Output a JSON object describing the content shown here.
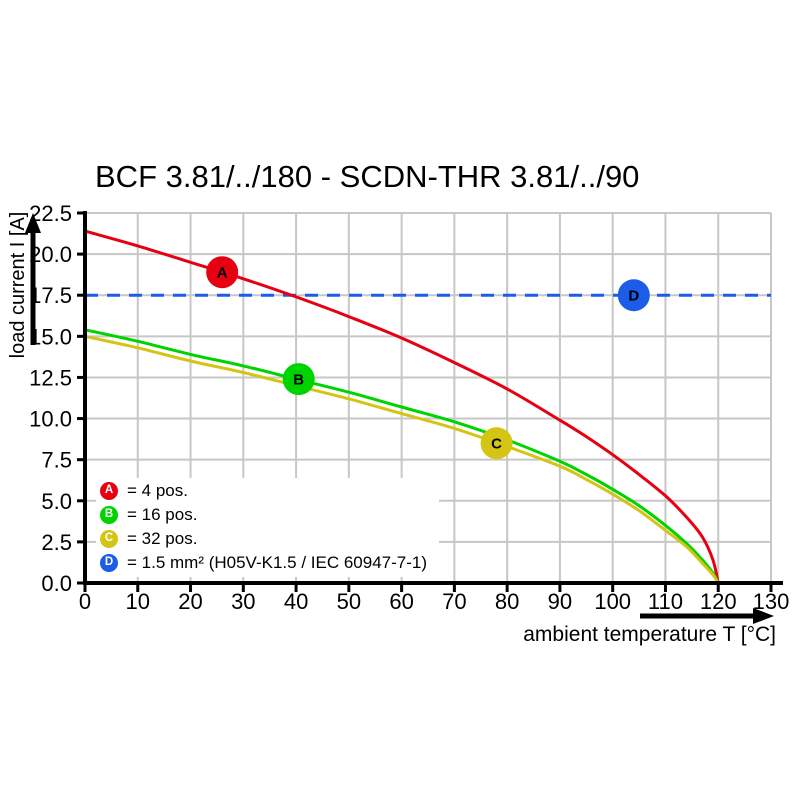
{
  "chart_data": {
    "type": "line",
    "title": "BCF 3.81/../180 - SCDN-THR 3.81/../90",
    "xlabel": "ambient temperature T [°C]",
    "ylabel": "load current I [A]",
    "xlim": [
      0,
      130
    ],
    "ylim": [
      0,
      22.5
    ],
    "x_ticks": [
      0,
      10,
      20,
      30,
      40,
      50,
      60,
      70,
      80,
      90,
      100,
      110,
      120,
      130
    ],
    "y_tick_values": [
      0,
      2.5,
      5,
      7.5,
      10,
      12.5,
      15,
      17.5,
      20,
      22.5
    ],
    "y_tick_labels": [
      "0.0",
      "2.5",
      "5.0",
      "7.5",
      "10.0",
      "12.5",
      "15.0",
      "17.5",
      "20.0",
      "22.5"
    ],
    "grid": true,
    "series": [
      {
        "name": "A = 4 pos.",
        "color": "#e60012",
        "x": [
          0,
          10,
          20,
          30,
          40,
          50,
          60,
          70,
          80,
          90,
          95,
          100,
          105,
          110,
          114,
          117,
          119,
          120
        ],
        "y": [
          21.4,
          20.5,
          19.5,
          18.5,
          17.4,
          16.2,
          14.9,
          13.4,
          11.8,
          9.9,
          8.9,
          7.8,
          6.6,
          5.3,
          4.0,
          2.8,
          1.4,
          0
        ]
      },
      {
        "name": "B = 16 pos.",
        "color": "#00d400",
        "x": [
          0,
          10,
          20,
          30,
          40,
          50,
          60,
          70,
          80,
          90,
          95,
          100,
          105,
          110,
          114,
          117,
          119,
          120
        ],
        "y": [
          15.4,
          14.7,
          13.9,
          13.2,
          12.4,
          11.6,
          10.7,
          9.8,
          8.7,
          7.4,
          6.6,
          5.7,
          4.7,
          3.5,
          2.4,
          1.4,
          0.6,
          0
        ]
      },
      {
        "name": "C = 32 pos.",
        "color": "#d4c413",
        "x": [
          0,
          10,
          20,
          30,
          40,
          50,
          60,
          70,
          80,
          90,
          95,
          100,
          105,
          110,
          114,
          117,
          119,
          120
        ],
        "y": [
          15.0,
          14.3,
          13.5,
          12.8,
          12.0,
          11.2,
          10.3,
          9.4,
          8.3,
          7.1,
          6.3,
          5.4,
          4.4,
          3.2,
          2.2,
          1.2,
          0.5,
          0
        ]
      }
    ],
    "reference_line": {
      "name": "D = 1.5 mm² (H05V-K1.5 / IEC 60947-7-1)",
      "y": 17.5,
      "x_range": [
        0,
        130
      ],
      "color": "#1b5ce8",
      "style": "dashed"
    },
    "markers": [
      {
        "letter": "A",
        "x": 26,
        "y": 18.9,
        "color": "#e60012"
      },
      {
        "letter": "B",
        "x": 40.5,
        "y": 12.4,
        "color": "#00d400"
      },
      {
        "letter": "C",
        "x": 78,
        "y": 8.5,
        "color": "#d4c413"
      },
      {
        "letter": "D",
        "x": 104,
        "y": 17.5,
        "color": "#1b5ce8"
      }
    ]
  },
  "legend": {
    "items": [
      {
        "letter": "A",
        "color": "#e60012",
        "label": "= 4 pos."
      },
      {
        "letter": "B",
        "color": "#00d400",
        "label": "= 16 pos."
      },
      {
        "letter": "C",
        "color": "#d4c413",
        "label": "= 32 pos."
      },
      {
        "letter": "D",
        "color": "#1b5ce8",
        "label": "= 1.5 mm² (H05V-K1.5 / IEC 60947-7-1)"
      }
    ]
  },
  "colors": {
    "grid": "#c7c7c7",
    "axis": "#000000",
    "background": "#ffffff"
  }
}
